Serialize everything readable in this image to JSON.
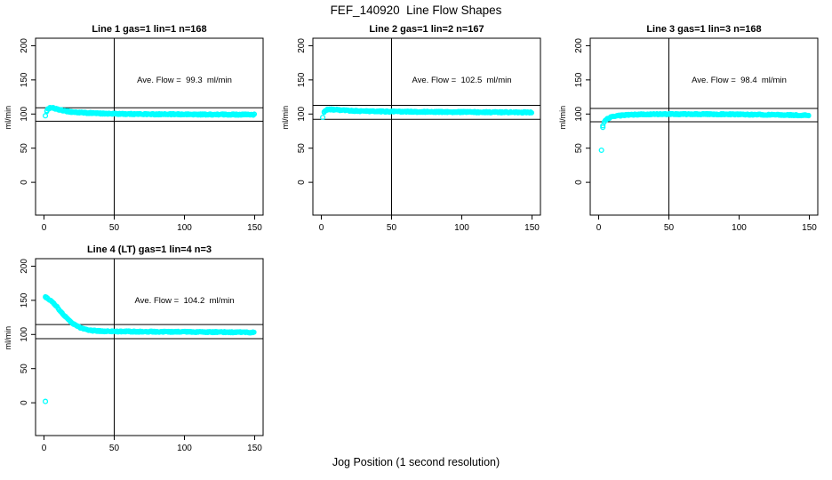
{
  "figure": {
    "title": "FEF_140920  Line Flow Shapes",
    "xlabel": "Jog Position (1 second resolution)"
  },
  "style": {
    "point_color": "#00ffff",
    "axis_color": "#000000",
    "background": "#ffffff"
  },
  "chart_data": [
    {
      "type": "scatter",
      "title": "Line 1 gas=1 lin=1 n=168",
      "annotation": "Ave. Flow =  99.3  ml/min",
      "ave_flow_ml_min": 99.3,
      "n_jogs": 168,
      "ylabel": "ml/min",
      "xlim": [
        -6,
        156
      ],
      "ylim": [
        -48,
        211
      ],
      "xticks": [
        0,
        50,
        100,
        150
      ],
      "yticks": [
        0,
        50,
        100,
        150,
        200
      ],
      "vline_x": 50,
      "hlines": [
        109.2,
        89.4
      ],
      "annotation_at": [
        100,
        150
      ],
      "outliers": [
        [
          1,
          97.5
        ]
      ],
      "curve": [
        [
          2,
          104.5
        ],
        [
          3,
          107.5
        ],
        [
          4,
          109
        ],
        [
          5,
          109.5
        ],
        [
          7,
          108.5
        ],
        [
          10,
          106.5
        ],
        [
          14,
          104.8
        ],
        [
          20,
          103
        ],
        [
          28,
          101.8
        ],
        [
          40,
          100.8
        ],
        [
          55,
          100.2
        ],
        [
          80,
          99.7
        ],
        [
          110,
          99.4
        ],
        [
          150,
          99.2
        ]
      ],
      "x_end": 150,
      "jitter": 1.0,
      "grid_pos": [
        0,
        0
      ]
    },
    {
      "type": "scatter",
      "title": "Line 2 gas=1 lin=2 n=167",
      "annotation": "Ave. Flow =  102.5  ml/min",
      "ave_flow_ml_min": 102.5,
      "n_jogs": 167,
      "ylabel": "ml/min",
      "xlim": [
        -6,
        156
      ],
      "ylim": [
        -48,
        211
      ],
      "xticks": [
        0,
        50,
        100,
        150
      ],
      "yticks": [
        0,
        50,
        100,
        150,
        200
      ],
      "vline_x": 50,
      "hlines": [
        112.8,
        92.3
      ],
      "annotation_at": [
        100,
        150
      ],
      "outliers": [
        [
          1,
          95
        ]
      ],
      "curve": [
        [
          2,
          102.5
        ],
        [
          3,
          105
        ],
        [
          4,
          106.3
        ],
        [
          6,
          106.8
        ],
        [
          9,
          106.4
        ],
        [
          14,
          105.6
        ],
        [
          20,
          104.9
        ],
        [
          30,
          104.2
        ],
        [
          45,
          103.7
        ],
        [
          70,
          103.2
        ],
        [
          100,
          102.9
        ],
        [
          150,
          102.4
        ]
      ],
      "x_end": 150,
      "jitter": 1.0,
      "grid_pos": [
        0,
        1
      ]
    },
    {
      "type": "scatter",
      "title": "Line 3 gas=1 lin=3 n=168",
      "annotation": "Ave. Flow =  98.4  ml/min",
      "ave_flow_ml_min": 98.4,
      "n_jogs": 168,
      "ylabel": "ml/min",
      "xlim": [
        -6,
        156
      ],
      "ylim": [
        -48,
        211
      ],
      "xticks": [
        0,
        50,
        100,
        150
      ],
      "yticks": [
        0,
        50,
        100,
        150,
        200
      ],
      "vline_x": 50,
      "hlines": [
        108.2,
        88.6
      ],
      "annotation_at": [
        100,
        150
      ],
      "outliers": [
        [
          2,
          47
        ],
        [
          3,
          80.5
        ],
        [
          3,
          83
        ]
      ],
      "curve": [
        [
          4,
          88.5
        ],
        [
          5,
          91
        ],
        [
          6,
          92.8
        ],
        [
          8,
          94.8
        ],
        [
          10,
          96
        ],
        [
          13,
          97.2
        ],
        [
          17,
          98.2
        ],
        [
          22,
          98.9
        ],
        [
          30,
          99.5
        ],
        [
          45,
          99.9
        ],
        [
          70,
          99.9
        ],
        [
          100,
          99.5
        ],
        [
          130,
          98.7
        ],
        [
          150,
          98
        ]
      ],
      "x_end": 150,
      "jitter": 0.9,
      "grid_pos": [
        0,
        2
      ]
    },
    {
      "type": "scatter",
      "title": "Line 4 (LT) gas=1 lin=4 n=3",
      "annotation": "Ave. Flow =  104.2  ml/min",
      "ave_flow_ml_min": 104.2,
      "n_jogs": 3,
      "ylabel": "ml/min",
      "xlim": [
        -6,
        156
      ],
      "ylim": [
        -48,
        211
      ],
      "xticks": [
        0,
        50,
        100,
        150
      ],
      "yticks": [
        0,
        50,
        100,
        150,
        200
      ],
      "vline_x": 50,
      "hlines": [
        114.6,
        93.8
      ],
      "annotation_at": [
        100,
        150
      ],
      "outliers": [
        [
          1,
          2
        ]
      ],
      "curve": [
        [
          1,
          154.5
        ],
        [
          2,
          154
        ],
        [
          3,
          152.5
        ],
        [
          5,
          149.5
        ],
        [
          7,
          145.5
        ],
        [
          9,
          141
        ],
        [
          11,
          136
        ],
        [
          13,
          131
        ],
        [
          15,
          126.5
        ],
        [
          17,
          122.5
        ],
        [
          19,
          118.8
        ],
        [
          21,
          115.5
        ],
        [
          24,
          111.8
        ],
        [
          27,
          109
        ],
        [
          30,
          107
        ],
        [
          34,
          105.8
        ],
        [
          40,
          104.9
        ],
        [
          50,
          104.5
        ],
        [
          70,
          104.2
        ],
        [
          100,
          103.8
        ],
        [
          125,
          103.4
        ],
        [
          150,
          103.1
        ]
      ],
      "x_end": 150,
      "jitter": 0.9,
      "grid_pos": [
        1,
        0
      ]
    }
  ]
}
